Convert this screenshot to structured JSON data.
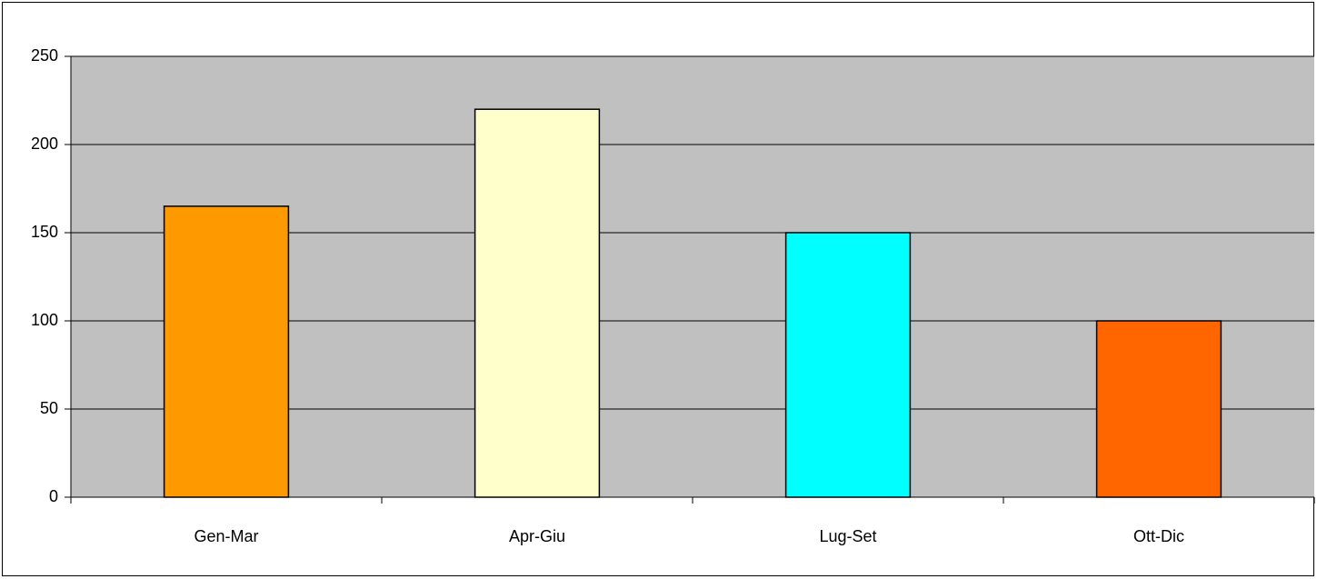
{
  "chart_data": {
    "type": "bar",
    "categories": [
      "Gen-Mar",
      "Apr-Giu",
      "Lug-Set",
      "Ott-Dic"
    ],
    "values": [
      165,
      220,
      150,
      100
    ],
    "colors": [
      "#ff9900",
      "#ffffcc",
      "#00ffff",
      "#ff6600"
    ],
    "ylim": [
      0,
      250
    ],
    "yticks": [
      0,
      50,
      100,
      150,
      200,
      250
    ],
    "grid": true
  }
}
